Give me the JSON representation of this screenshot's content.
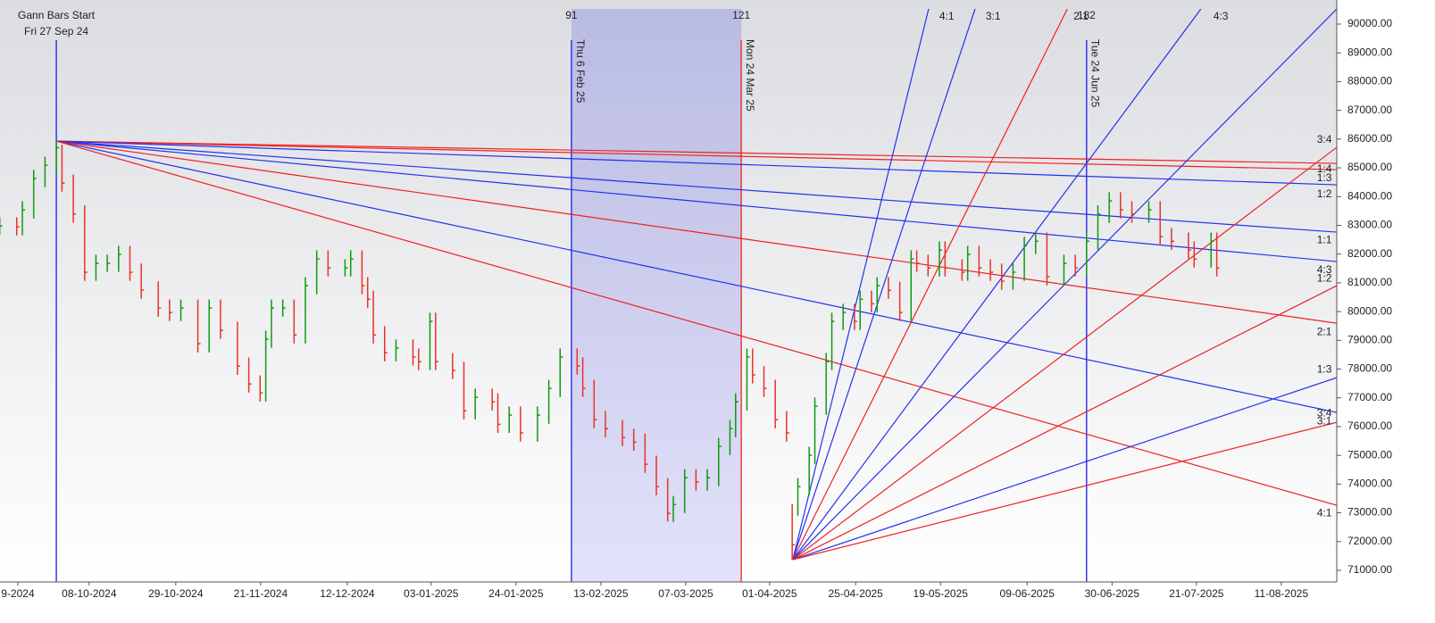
{
  "chart_data": {
    "type": "ohlc",
    "x": [
      -10,
      -7,
      -6,
      -4,
      -2,
      0,
      1,
      3,
      5,
      7,
      9,
      11,
      13,
      15,
      18,
      20,
      22,
      25,
      27,
      29,
      32,
      34,
      36,
      37,
      38,
      40,
      42,
      44,
      46,
      48,
      51,
      52,
      54,
      55,
      56,
      58,
      60,
      63,
      64,
      66,
      67,
      70,
      72,
      74,
      77,
      78,
      80,
      82,
      85,
      87,
      89,
      92,
      93,
      95,
      97,
      100,
      102,
      104,
      106,
      108,
      109,
      111,
      113,
      115,
      117,
      119,
      120,
      122,
      123,
      125,
      127,
      129,
      130,
      131,
      133,
      134,
      136,
      137,
      139,
      141,
      142,
      144,
      145,
      147,
      149,
      151,
      152,
      154,
      156,
      157,
      160,
      161,
      163,
      165,
      167,
      169,
      171,
      173,
      175,
      178,
      180,
      182,
      184,
      186,
      188,
      190,
      193,
      195,
      197,
      200,
      201,
      204,
      205
    ],
    "high": [
      83280,
      83280,
      83840,
      84930,
      85390,
      85930,
      85800,
      84770,
      83690,
      81980,
      81980,
      82290,
      82290,
      81670,
      81050,
      80420,
      80420,
      80420,
      80420,
      80420,
      79650,
      78400,
      77780,
      79340,
      80420,
      80420,
      80420,
      81200,
      82130,
      82130,
      81820,
      82130,
      82130,
      81200,
      80730,
      79490,
      79030,
      79030,
      78720,
      79960,
      79960,
      78560,
      78250,
      77320,
      77320,
      77160,
      76700,
      76700,
      76700,
      77630,
      78720,
      78720,
      78410,
      77630,
      76540,
      76230,
      75920,
      75760,
      74990,
      74210,
      73590,
      74520,
      74520,
      74520,
      75610,
      76230,
      77160,
      78720,
      78720,
      78100,
      77630,
      76540,
      73300,
      74210,
      75300,
      77010,
      78560,
      79960,
      80270,
      80270,
      80730,
      80730,
      81200,
      81200,
      81040,
      82130,
      82130,
      81980,
      82440,
      82440,
      81820,
      82290,
      82290,
      81820,
      81670,
      81670,
      82600,
      82750,
      82750,
      81980,
      81980,
      82750,
      83690,
      84150,
      84150,
      83840,
      83840,
      83840,
      82910,
      82750,
      82440,
      82750,
      82750
    ],
    "low": [
      82680,
      82650,
      82650,
      83240,
      84330,
      84790,
      84170,
      83090,
      81070,
      81070,
      81380,
      81380,
      81070,
      80450,
      79820,
      79670,
      79670,
      78580,
      78580,
      79050,
      77800,
      77180,
      76870,
      76870,
      78740,
      79820,
      78890,
      78890,
      80600,
      81220,
      81220,
      81220,
      80600,
      80130,
      78890,
      78270,
      78270,
      78120,
      77960,
      77960,
      77960,
      77650,
      76250,
      76250,
      76560,
      75780,
      75780,
      75480,
      75480,
      76100,
      77030,
      77810,
      77030,
      75940,
      75630,
      75320,
      75160,
      74390,
      73610,
      72700,
      72680,
      72990,
      73770,
      73770,
      73920,
      75010,
      75630,
      76560,
      77500,
      77030,
      75940,
      75480,
      71370,
      72900,
      73610,
      74700,
      76410,
      77960,
      79360,
      79360,
      79360,
      79970,
      79970,
      80440,
      79670,
      79670,
      81380,
      81220,
      81220,
      81220,
      81070,
      81070,
      81220,
      81070,
      80760,
      80760,
      81070,
      82000,
      80910,
      80910,
      81220,
      81220,
      82150,
      83090,
      83240,
      83090,
      83090,
      82310,
      82150,
      81840,
      81530,
      81530,
      81220
    ],
    "close": [
      82980,
      82950,
      83540,
      84630,
      85090,
      85700,
      84470,
      83390,
      81370,
      81680,
      81680,
      81990,
      81370,
      80750,
      80120,
      79970,
      80120,
      78880,
      80120,
      79350,
      78100,
      77480,
      77170,
      79040,
      80120,
      80120,
      79190,
      80900,
      81830,
      81520,
      81520,
      81830,
      80900,
      80430,
      79190,
      78570,
      78730,
      78420,
      78260,
      79660,
      78260,
      77950,
      76550,
      77020,
      76860,
      76080,
      76400,
      75780,
      76400,
      77330,
      78420,
      78110,
      77330,
      76240,
      75930,
      75620,
      75460,
      74690,
      73910,
      72980,
      73290,
      74220,
      74070,
      74220,
      75310,
      75930,
      76860,
      78420,
      77800,
      77330,
      76240,
      75780,
      71890,
      73910,
      75000,
      76710,
      78260,
      79660,
      79970,
      79660,
      80430,
      80270,
      80900,
      80740,
      79970,
      81830,
      81680,
      81520,
      82140,
      81520,
      81370,
      81990,
      81520,
      81370,
      81060,
      81370,
      82300,
      82450,
      81210,
      81680,
      81520,
      82450,
      83390,
      83850,
      83540,
      83390,
      83540,
      82610,
      82450,
      82140,
      81830,
      82450,
      81520
    ],
    "up_color": "#119911",
    "down_color": "#e8332a",
    "xlim": [
      -9.95,
      226.2
    ],
    "ylim": [
      70596,
      90528
    ],
    "xticks": [
      {
        "value": -6.8,
        "label": "9-2024"
      },
      {
        "value": 5.8,
        "label": "08-10-2024"
      },
      {
        "value": 21.1,
        "label": "29-10-2024"
      },
      {
        "value": 36.1,
        "label": "21-11-2024"
      },
      {
        "value": 51.4,
        "label": "12-12-2024"
      },
      {
        "value": 66.2,
        "label": "03-01-2025"
      },
      {
        "value": 81.2,
        "label": "24-01-2025"
      },
      {
        "value": 96.2,
        "label": "13-02-2025"
      },
      {
        "value": 111.2,
        "label": "07-03-2025"
      },
      {
        "value": 126.0,
        "label": "01-04-2025"
      },
      {
        "value": 141.2,
        "label": "25-04-2025"
      },
      {
        "value": 156.2,
        "label": "19-05-2025"
      },
      {
        "value": 171.5,
        "label": "09-06-2025"
      },
      {
        "value": 186.5,
        "label": "30-06-2025"
      },
      {
        "value": 201.4,
        "label": "21-07-2025"
      },
      {
        "value": 216.4,
        "label": "11-08-2025"
      }
    ],
    "yticks": [
      {
        "value": 71000,
        "label": "71000.00"
      },
      {
        "value": 72000,
        "label": "72000.00"
      },
      {
        "value": 73000,
        "label": "73000.00"
      },
      {
        "value": 74000,
        "label": "74000.00"
      },
      {
        "value": 75000,
        "label": "75000.00"
      },
      {
        "value": 76000,
        "label": "76000.00"
      },
      {
        "value": 77000,
        "label": "77000.00"
      },
      {
        "value": 78000,
        "label": "78000.00"
      },
      {
        "value": 79000,
        "label": "79000.00"
      },
      {
        "value": 80000,
        "label": "80000.00"
      },
      {
        "value": 81000,
        "label": "81000.00"
      },
      {
        "value": 82000,
        "label": "82000.00"
      },
      {
        "value": 83000,
        "label": "83000.00"
      },
      {
        "value": 84000,
        "label": "84000.00"
      },
      {
        "value": 85000,
        "label": "85000.00"
      },
      {
        "value": 86000,
        "label": "86000.00"
      },
      {
        "value": 87000,
        "label": "87000.00"
      },
      {
        "value": 88000,
        "label": "88000.00"
      },
      {
        "value": 89000,
        "label": "89000.00"
      },
      {
        "value": 90000,
        "label": "90000.00"
      }
    ],
    "shaded_range": {
      "x": [
        91,
        121
      ]
    },
    "vertical_lines": [
      {
        "x": 0,
        "color": "#1a1aee",
        "top_label": "Gann Bars Start",
        "label": "Fri 27 Sep 24",
        "label_orientation": "horizontal"
      },
      {
        "x": 91,
        "color": "#1a1aee",
        "top_label": "91",
        "label": "Thu 6 Feb 25",
        "label_orientation": "vertical"
      },
      {
        "x": 121,
        "color": "#ee2222",
        "top_label": "121",
        "label": "Mon 24 Mar 25",
        "label_orientation": "vertical"
      },
      {
        "x": 182,
        "color": "#1a1aee",
        "top_label": "182",
        "label": "Tue 24 Jun 25",
        "label_orientation": "vertical"
      }
    ],
    "fan_lines": [
      {
        "color": "#ee2222",
        "x": [
          0,
          226.2
        ],
        "y": [
          85930,
          85155
        ]
      },
      {
        "color": "#ee2222",
        "x": [
          0,
          226.2
        ],
        "y": [
          85930,
          84938
        ]
      },
      {
        "color": "#2233ee",
        "x": [
          0,
          226.2
        ],
        "y": [
          85930,
          84410
        ]
      },
      {
        "color": "#2233ee",
        "x": [
          0,
          226.2
        ],
        "y": [
          85930,
          82764
        ]
      },
      {
        "color": "#2233ee",
        "x": [
          0,
          226.2
        ],
        "y": [
          85930,
          81739
        ]
      },
      {
        "color": "#ee2222",
        "x": [
          0,
          226.2
        ],
        "y": [
          85930,
          79596
        ]
      },
      {
        "color": "#2233ee",
        "x": [
          0,
          226.2
        ],
        "y": [
          85930,
          76491
        ]
      },
      {
        "color": "#ee2222",
        "x": [
          0,
          226.2
        ],
        "y": [
          85930,
          73261
        ]
      },
      {
        "color": "#2233ee",
        "x": [
          130.1,
          154.1
        ],
        "y": [
          71370,
          90528
        ]
      },
      {
        "color": "#2233ee",
        "x": [
          130.1,
          162.3
        ],
        "y": [
          71370,
          90528
        ]
      },
      {
        "color": "#ee2222",
        "x": [
          130.1,
          178.6
        ],
        "y": [
          71370,
          90528
        ]
      },
      {
        "color": "#2233ee",
        "x": [
          130.1,
          202.2
        ],
        "y": [
          71370,
          90528
        ]
      },
      {
        "color": "#2233ee",
        "x": [
          130.1,
          226.2
        ],
        "y": [
          71370,
          90528
        ]
      },
      {
        "color": "#ee2222",
        "x": [
          130.1,
          226.2
        ],
        "y": [
          71370,
          85714
        ]
      },
      {
        "color": "#ee2222",
        "x": [
          130.1,
          226.2
        ],
        "y": [
          71370,
          80901
        ]
      },
      {
        "color": "#2233ee",
        "x": [
          130.1,
          226.2
        ],
        "y": [
          71370,
          77702
        ]
      },
      {
        "color": "#ee2222",
        "x": [
          130.1,
          226.2
        ],
        "y": [
          71370,
          76149
        ]
      }
    ],
    "fan_labels": [
      {
        "text": "3:4",
        "x": 224,
        "y": 85963
      },
      {
        "text": "1:4",
        "x": 224,
        "y": 84938
      },
      {
        "text": "1:3",
        "x": 224,
        "y": 84627
      },
      {
        "text": "1:2",
        "x": 224,
        "y": 84068
      },
      {
        "text": "1:1",
        "x": 224,
        "y": 82484
      },
      {
        "text": "4:3",
        "x": 224,
        "y": 81429
      },
      {
        "text": "1:2",
        "x": 224,
        "y": 81149
      },
      {
        "text": "2:1",
        "x": 224,
        "y": 79286
      },
      {
        "text": "1:3",
        "x": 224,
        "y": 77981
      },
      {
        "text": "3:4",
        "x": 224,
        "y": 76460
      },
      {
        "text": "3:1",
        "x": 224,
        "y": 76180
      },
      {
        "text": "4:1",
        "x": 224,
        "y": 72981
      },
      {
        "text": "4:1",
        "x": 157.3,
        "y": 90250
      },
      {
        "text": "3:1",
        "x": 165.5,
        "y": 90250
      },
      {
        "text": "2:1",
        "x": 181,
        "y": 90250
      },
      {
        "text": "4:3",
        "x": 205.7,
        "y": 90250
      }
    ]
  }
}
